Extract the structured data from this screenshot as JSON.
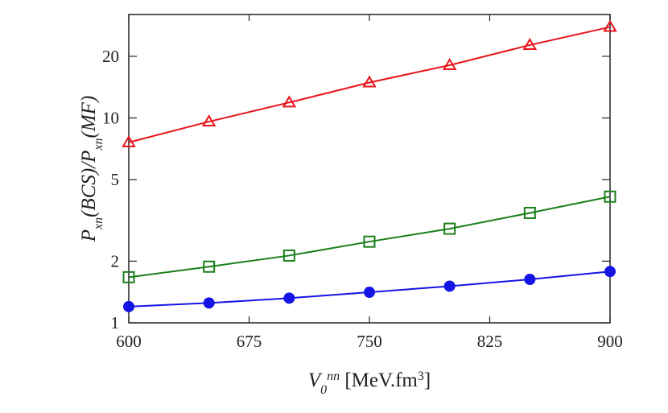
{
  "chart_data": {
    "type": "line",
    "log_y": true,
    "xlabel": [
      {
        "text": "V",
        "shift": "base"
      },
      {
        "text": "0",
        "shift": "sub"
      },
      {
        "text": "nn",
        "shift": "super"
      },
      {
        "text": " [MeV.fm",
        "shift": "base"
      },
      {
        "text": "3",
        "shift": "super"
      },
      {
        "text": "]",
        "shift": "base"
      }
    ],
    "ylabel": [
      {
        "text": "P",
        "shift": "base"
      },
      {
        "text": "xn",
        "shift": "sub"
      },
      {
        "text": "(BCS)/P",
        "shift": "base"
      },
      {
        "text": "xn",
        "shift": "sub"
      },
      {
        "text": "(MF)",
        "shift": "base"
      }
    ],
    "x": [
      600,
      650,
      700,
      750,
      800,
      850,
      900
    ],
    "xlim": [
      600,
      900
    ],
    "xticks": [
      600,
      675,
      750,
      825,
      900
    ],
    "ylim": [
      1,
      32
    ],
    "yticks": [
      1,
      2,
      5,
      10,
      20
    ],
    "series": [
      {
        "color": "#e8141a",
        "marker": "triangle",
        "values": [
          7.6,
          9.6,
          11.9,
          14.9,
          18.1,
          22.7,
          27.8
        ]
      },
      {
        "color": "#1a7f1a",
        "marker": "square",
        "values": [
          1.67,
          1.88,
          2.13,
          2.49,
          2.88,
          3.44,
          4.13
        ]
      },
      {
        "color": "#1414e6",
        "marker": "circle",
        "values": [
          1.2,
          1.25,
          1.32,
          1.41,
          1.51,
          1.63,
          1.78
        ]
      }
    ]
  }
}
